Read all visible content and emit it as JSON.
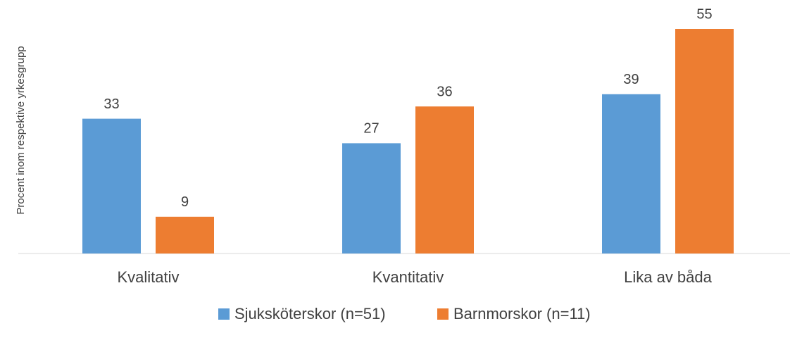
{
  "chart_data": {
    "type": "bar",
    "y_label": "Procent inom respektive yrkesgrupp",
    "categories": [
      "Kvalitativ",
      "Kvantitativ",
      "Lika av båda"
    ],
    "series": [
      {
        "name": "Sjuksköterskor (n=51)",
        "color": "#5b9bd5",
        "values": [
          33,
          27,
          39
        ]
      },
      {
        "name": "Barnmorskor (n=11)",
        "color": "#ed7d31",
        "values": [
          9,
          36,
          55
        ]
      }
    ],
    "ylim": [
      0,
      60
    ]
  }
}
